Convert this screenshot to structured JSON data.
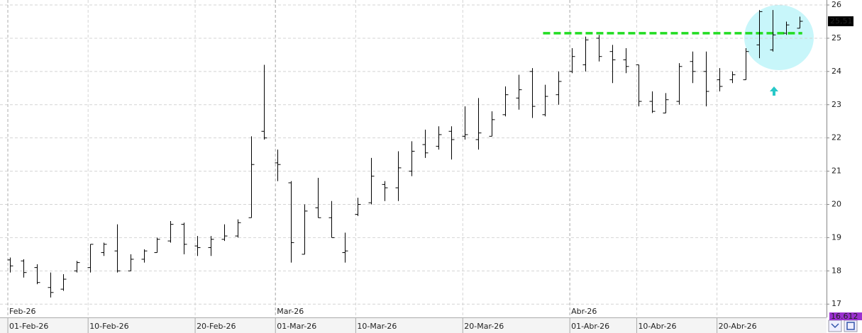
{
  "chart_data": {
    "type": "ohlc",
    "categories": [
      "01-Feb-26",
      null,
      null,
      null,
      null,
      null,
      "10-Feb-26",
      null,
      null,
      null,
      null,
      null,
      null,
      null,
      "20-Feb-26",
      null,
      null,
      null,
      null,
      null,
      "01-Mar-26",
      null,
      null,
      null,
      null,
      null,
      "10-Mar-26",
      null,
      null,
      null,
      null,
      null,
      null,
      null,
      "20-Mar-26",
      null,
      null,
      null,
      null,
      null,
      null,
      null,
      "01-Abr-26",
      null,
      null,
      null,
      null,
      "10-Abr-26",
      null,
      null,
      null,
      null,
      null,
      "20-Abr-26",
      null,
      null,
      null,
      null,
      null,
      null
    ],
    "month_labels": [
      "Feb-26",
      null,
      null,
      null,
      null,
      null,
      null,
      null,
      null,
      null,
      null,
      null,
      null,
      null,
      null,
      null,
      null,
      null,
      null,
      null,
      "Mar-26",
      null,
      null,
      null,
      null,
      null,
      null,
      null,
      null,
      null,
      null,
      null,
      null,
      null,
      null,
      null,
      null,
      null,
      null,
      null,
      null,
      null,
      "Abr-26",
      null,
      null,
      null,
      null,
      null,
      null,
      null,
      null,
      null,
      null,
      null,
      null,
      null,
      null,
      null,
      null,
      null
    ],
    "open": [
      18.33,
      18.3,
      18.1,
      17.5,
      17.45,
      18.0,
      18.1,
      18.55,
      18.6,
      18.0,
      18.35,
      18.55,
      18.9,
      19.4,
      18.75,
      18.7,
      18.95,
      19.05,
      19.6,
      22.2,
      21.25,
      20.65,
      18.5,
      19.9,
      19.6,
      18.55,
      19.7,
      20.05,
      20.6,
      20.5,
      21.0,
      21.8,
      21.75,
      22.2,
      22.05,
      21.95,
      22.05,
      22.7,
      23.2,
      24.0,
      22.7,
      23.3,
      24.0,
      24.2,
      25.0,
      24.6,
      24.35,
      24.2,
      23.1,
      22.75,
      23.1,
      24.3,
      24.0,
      23.75,
      23.75,
      23.75,
      24.8,
      24.65,
      25.15,
      25.3
    ],
    "high": [
      18.4,
      18.35,
      18.2,
      17.95,
      17.9,
      18.3,
      18.8,
      18.85,
      19.4,
      18.5,
      18.65,
      19.0,
      19.5,
      19.45,
      19.05,
      19.05,
      19.4,
      19.55,
      22.05,
      24.2,
      21.65,
      20.7,
      20.0,
      20.8,
      20.1,
      19.15,
      20.2,
      21.4,
      20.7,
      21.6,
      21.9,
      22.25,
      22.35,
      22.35,
      22.95,
      23.2,
      22.8,
      23.55,
      23.9,
      24.1,
      23.6,
      24.0,
      24.7,
      25.05,
      25.1,
      24.8,
      24.7,
      24.2,
      23.4,
      23.35,
      24.25,
      24.6,
      24.6,
      24.1,
      24.0,
      24.7,
      25.85,
      25.85,
      25.5,
      25.65
    ],
    "low": [
      17.95,
      17.8,
      17.6,
      17.2,
      17.4,
      17.95,
      17.95,
      18.45,
      17.95,
      18.0,
      18.25,
      18.55,
      18.85,
      18.5,
      18.45,
      18.45,
      18.9,
      19.0,
      19.6,
      21.95,
      20.7,
      18.25,
      18.5,
      19.6,
      19.0,
      18.25,
      19.65,
      20.0,
      20.1,
      20.1,
      20.85,
      21.4,
      21.65,
      21.35,
      21.95,
      21.65,
      22.05,
      22.65,
      22.85,
      22.6,
      22.65,
      23.0,
      23.95,
      24.0,
      24.3,
      23.65,
      23.95,
      22.95,
      22.75,
      22.75,
      23.0,
      23.65,
      22.95,
      23.4,
      23.65,
      23.75,
      24.4,
      24.6,
      25.1,
      25.3
    ],
    "close": [
      18.15,
      17.95,
      17.65,
      17.35,
      17.75,
      18.25,
      18.8,
      18.8,
      18.0,
      18.35,
      18.6,
      18.95,
      19.4,
      18.8,
      18.7,
      18.95,
      19.05,
      19.45,
      21.2,
      22.0,
      21.2,
      18.85,
      19.8,
      19.6,
      19.0,
      18.6,
      20.0,
      20.85,
      20.5,
      21.1,
      21.6,
      21.55,
      22.1,
      21.95,
      22.1,
      22.15,
      22.55,
      23.3,
      23.45,
      22.95,
      23.25,
      23.7,
      24.45,
      24.95,
      24.45,
      24.35,
      24.15,
      23.1,
      22.8,
      23.15,
      24.15,
      24.0,
      23.4,
      23.55,
      23.9,
      24.6,
      25.8,
      25.1,
      25.4,
      25.51
    ],
    "color": "#000000",
    "ylim": [
      16.6,
      26.15
    ],
    "yticks": [
      17,
      18,
      19,
      20,
      21,
      22,
      23,
      24,
      25,
      26
    ],
    "grid": true,
    "level_line": {
      "value": 25.15,
      "color": "#22dd22"
    },
    "last_price": {
      "value": 25.51,
      "label": "25,51"
    },
    "volume_label": "16.612"
  }
}
